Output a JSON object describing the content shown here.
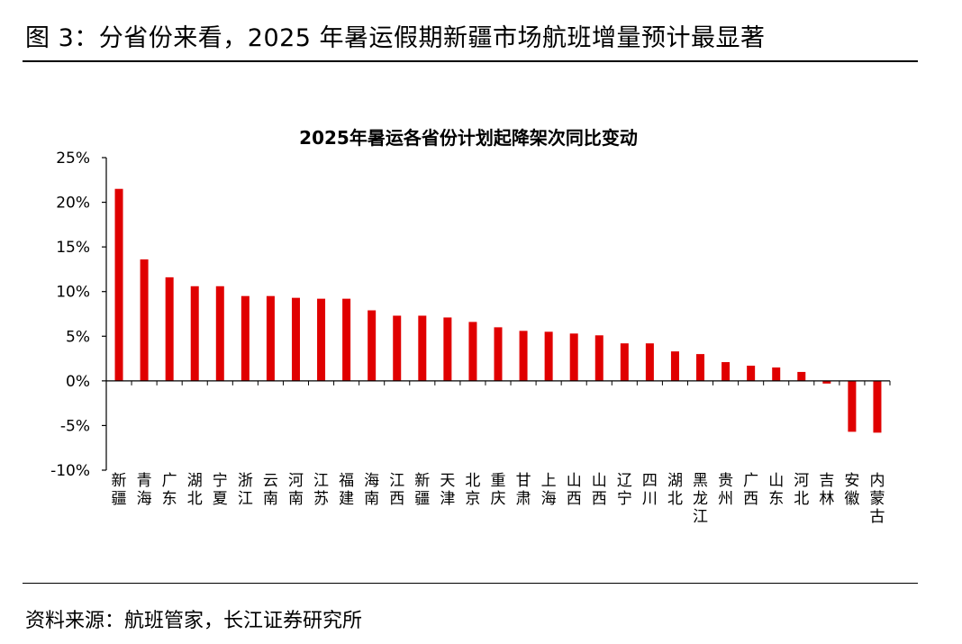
{
  "figure_title": "图 3：分省份来看，2025 年暑运假期新疆市场航班增量预计最显著",
  "source_text": "资料来源：航班管家，长江证券研究所",
  "colors": {
    "bar": "#e00000",
    "axis": "#000000"
  },
  "chart_data": {
    "type": "bar",
    "title": "2025年暑运各省份计划起降架次同比变动",
    "xlabel": "",
    "ylabel": "",
    "ylim": [
      -10,
      25
    ],
    "yticks": [
      -10,
      -5,
      0,
      5,
      10,
      15,
      20,
      25
    ],
    "ytick_labels": [
      "-10%",
      "-5%",
      "0%",
      "5%",
      "10%",
      "15%",
      "20%",
      "25%"
    ],
    "grid": false,
    "legend": "none",
    "categories": [
      "新疆",
      "青海",
      "广东",
      "湖北",
      "宁夏",
      "浙江",
      "云南",
      "河南",
      "江苏",
      "福建",
      "海南",
      "江西",
      "新疆",
      "天津",
      "北京",
      "重庆",
      "甘肃",
      "上海",
      "山西",
      "山西",
      "辽宁",
      "四川",
      "湖北",
      "黑龙江",
      "贵州",
      "广西",
      "山东",
      "河北",
      "吉林",
      "安徽",
      "内蒙古"
    ],
    "series": [
      {
        "values": [
          21.5,
          13.6,
          11.6,
          10.6,
          10.6,
          9.5,
          9.5,
          9.3,
          9.2,
          9.2,
          7.9,
          7.3,
          7.3,
          7.1,
          6.6,
          6.0,
          5.6,
          5.5,
          5.3,
          5.1,
          4.2,
          4.2,
          3.3,
          3.0,
          2.1,
          1.7,
          1.5,
          1.0,
          -0.3,
          -5.7,
          -5.8
        ]
      }
    ]
  }
}
